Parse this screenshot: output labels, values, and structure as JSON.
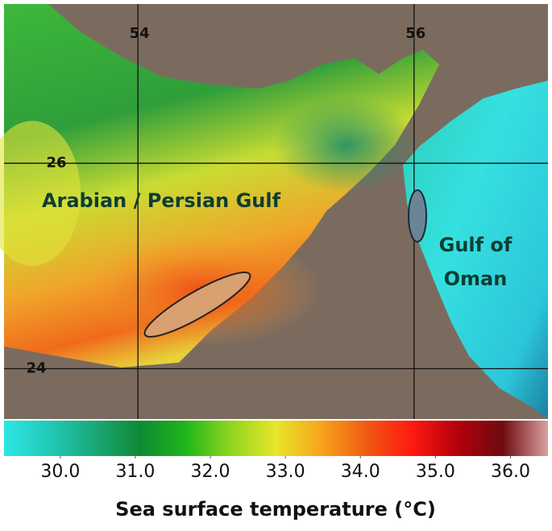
{
  "map": {
    "lon_lim": [
      53.03,
      56.97
    ],
    "lat_lim": [
      23.51,
      27.55
    ],
    "lon_ticks": [
      54,
      56
    ],
    "lat_ticks": [
      24,
      26
    ],
    "regions": [
      "Arabian / Persian Gulf",
      "Gulf of",
      "Oman"
    ]
  },
  "colorbar": {
    "lim": [
      29.25,
      36.5
    ],
    "colors": [
      "#2ee6e6",
      "#22c9b8",
      "#1aa877",
      "#0f8a35",
      "#1fb51a",
      "#8fd61f",
      "#e8e62a",
      "#f7a31c",
      "#f05a12",
      "#ff1a10",
      "#b3000a",
      "#6e0b10",
      "#d9a0a0"
    ],
    "ticks": [
      {
        "value": 30,
        "label": "30.0"
      },
      {
        "value": 31,
        "label": "31.0"
      },
      {
        "value": 32,
        "label": "32.0"
      },
      {
        "value": 33,
        "label": "33.0"
      },
      {
        "value": 34,
        "label": "34.0"
      },
      {
        "value": 35,
        "label": "35.0"
      },
      {
        "value": 36,
        "label": "36.0"
      }
    ],
    "label": "Sea surface temperature (°C)"
  }
}
